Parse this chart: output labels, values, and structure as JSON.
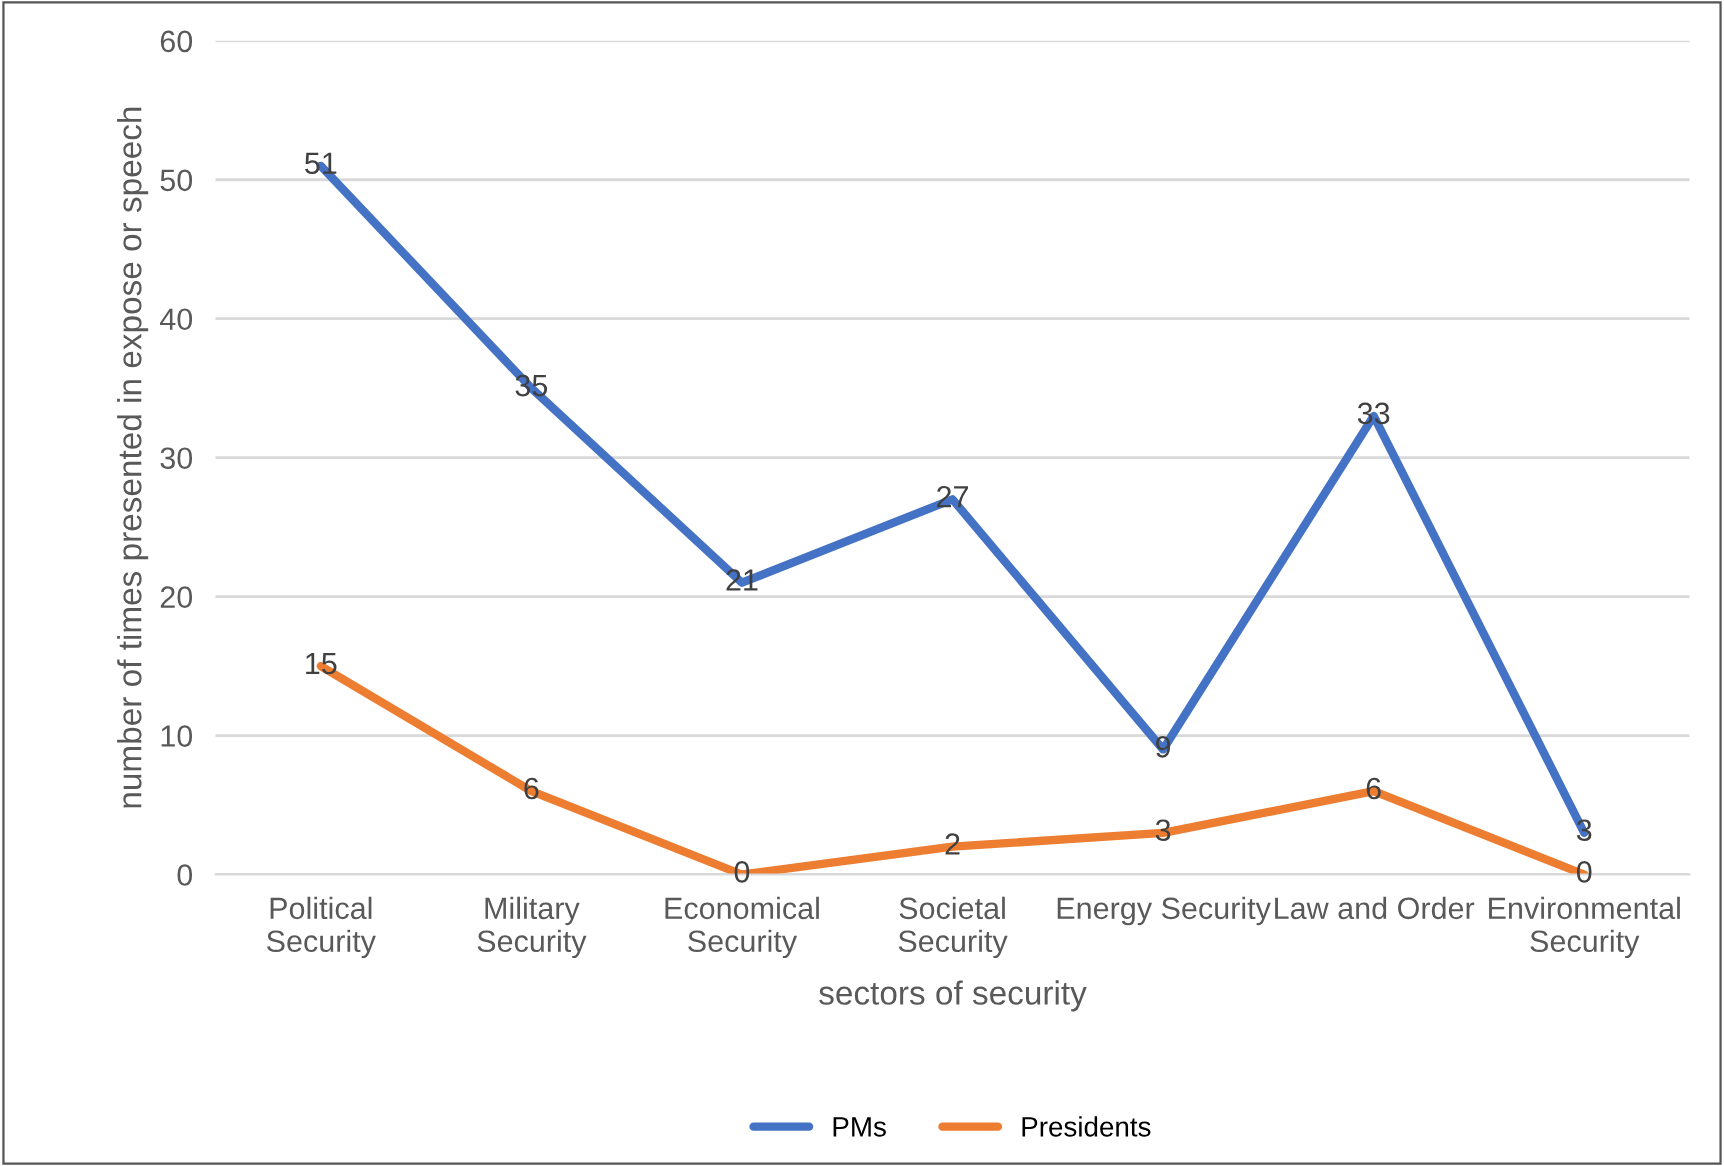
{
  "chart_data": {
    "type": "line",
    "xlabel": "sectors of security",
    "ylabel": "number of times presented in expose or speech",
    "categories": [
      "Political Security",
      "Military Security",
      "Economical Security",
      "Societal Security",
      "Energy Security",
      "Law and Order",
      "Environmental Security"
    ],
    "series": [
      {
        "name": "PMs",
        "color": "#4472c4",
        "values": [
          51,
          35,
          21,
          27,
          9,
          33,
          3
        ]
      },
      {
        "name": "Presidents",
        "color": "#ed7d31",
        "values": [
          15,
          6,
          0,
          2,
          3,
          6,
          0
        ]
      }
    ],
    "ylim": [
      0,
      60
    ],
    "yticks": [
      0,
      10,
      20,
      30,
      40,
      50,
      60
    ],
    "grid": "y",
    "legend": "bottom",
    "data_labels": true,
    "marker": "none",
    "line_style": "solid"
  }
}
